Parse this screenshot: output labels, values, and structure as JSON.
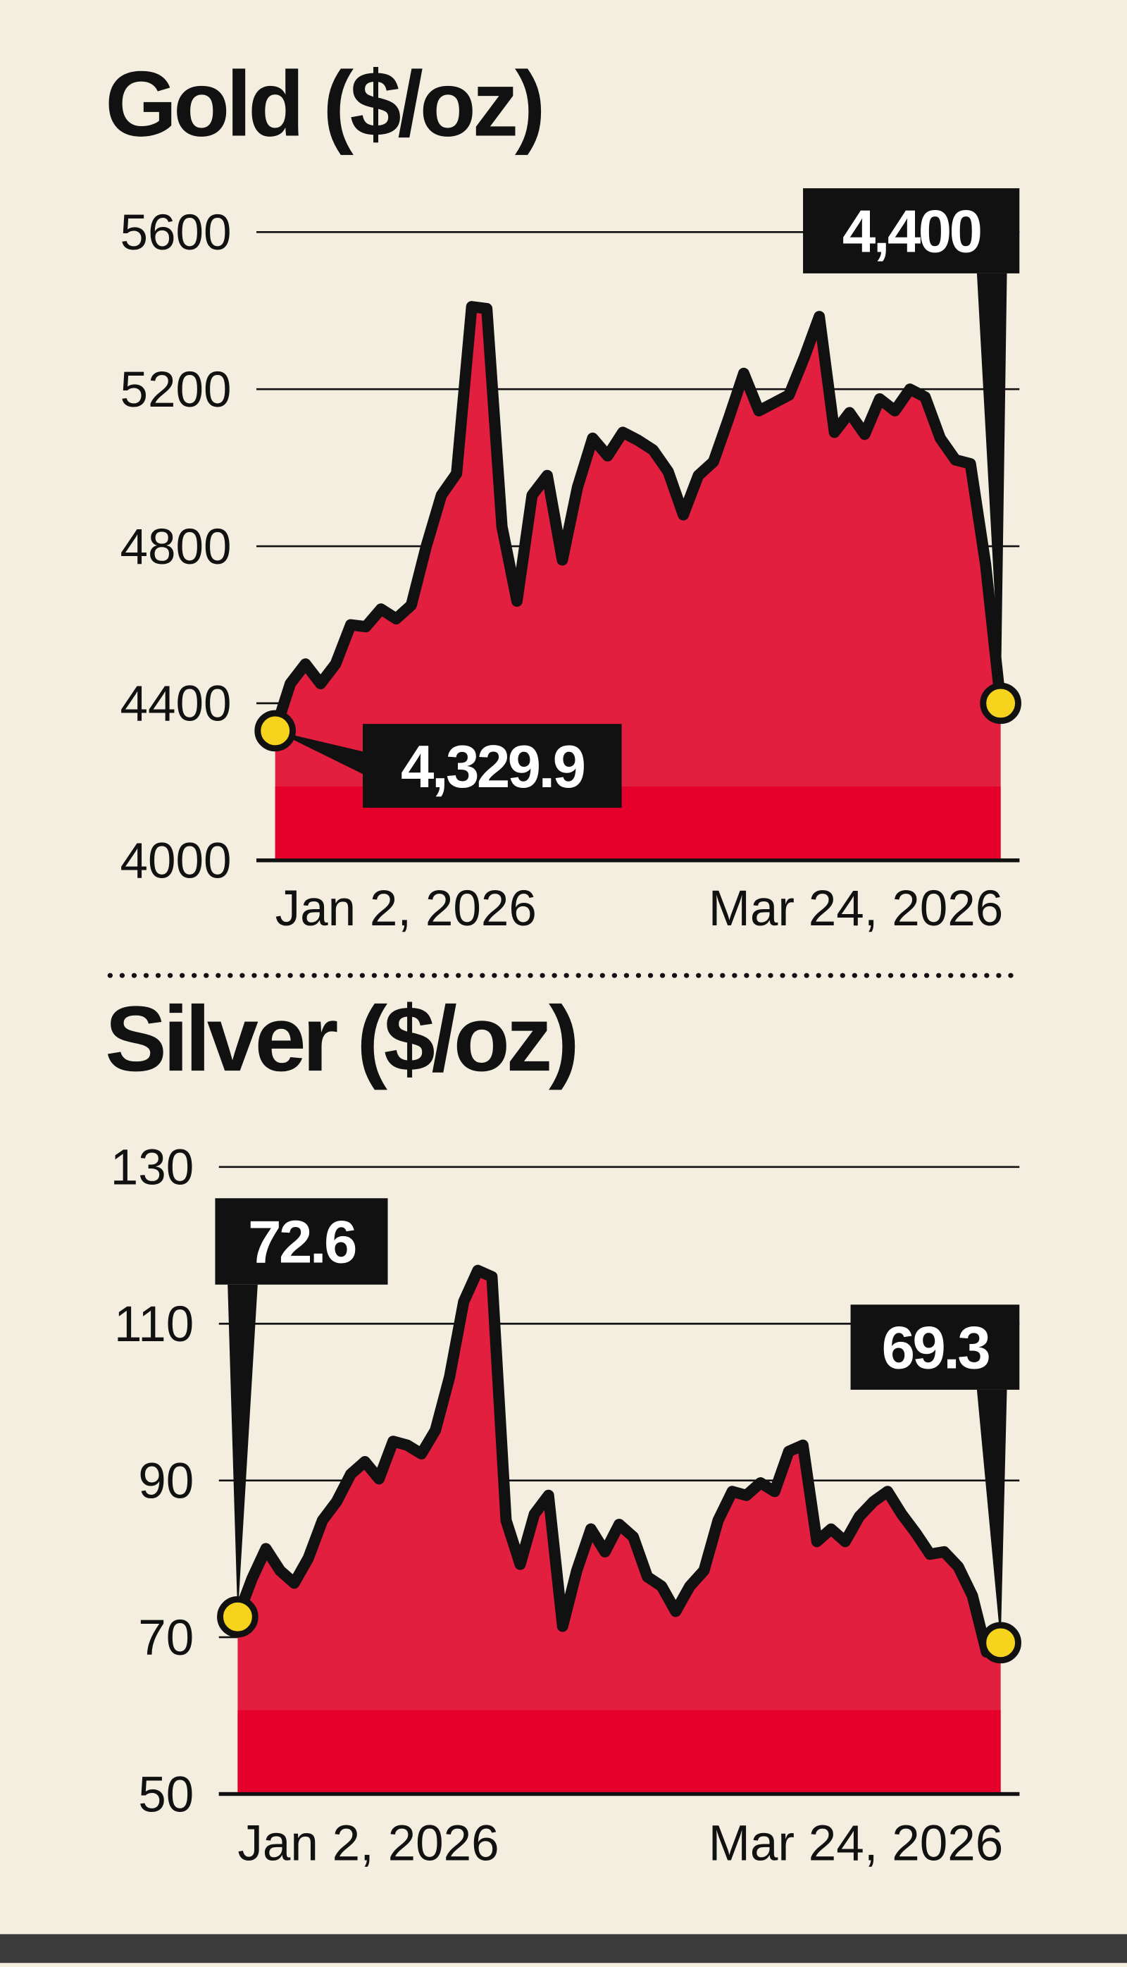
{
  "chart_data": [
    {
      "type": "area",
      "title": "Gold ($/oz)",
      "color": "#e21f3f",
      "line_color": "#111111",
      "categories": [
        "Jan 2, 2026",
        null,
        null,
        null,
        null,
        null,
        null,
        null,
        null,
        null,
        null,
        null,
        null,
        null,
        null,
        null,
        null,
        null,
        null,
        null,
        null,
        null,
        null,
        null,
        null,
        null,
        null,
        null,
        null,
        null,
        null,
        null,
        null,
        null,
        null,
        null,
        null,
        null,
        null,
        null,
        null,
        null,
        null,
        null,
        null,
        null,
        null,
        null,
        "Mar 24, 2026"
      ],
      "values": [
        4329.9,
        4450,
        4500,
        4450,
        4500,
        4600,
        4595,
        4640,
        4615,
        4650,
        4800,
        4930,
        4985,
        5410,
        5405,
        4850,
        4660,
        4930,
        4980,
        4765,
        4950,
        5075,
        5030,
        5090,
        5070,
        5045,
        4990,
        4880,
        4980,
        5015,
        5125,
        5240,
        5145,
        5165,
        5185,
        5280,
        5385,
        5090,
        5140,
        5085,
        5175,
        5145,
        5200,
        5180,
        5075,
        5020,
        5010,
        4755,
        4400
      ],
      "value_labels": [
        "4,329.9",
        null,
        null,
        null,
        null,
        null,
        null,
        null,
        null,
        null,
        null,
        null,
        null,
        null,
        null,
        null,
        null,
        null,
        null,
        null,
        null,
        null,
        null,
        null,
        null,
        null,
        null,
        null,
        null,
        null,
        null,
        null,
        null,
        null,
        null,
        null,
        null,
        null,
        null,
        null,
        null,
        null,
        null,
        null,
        null,
        null,
        null,
        null,
        "4,400"
      ],
      "ylim": [
        4000,
        5600
      ],
      "yticks": [
        4000,
        4400,
        4800,
        5200,
        5600
      ],
      "grid": true
    },
    {
      "type": "area",
      "title": "Silver ($/oz)",
      "color": "#e21f3f",
      "line_color": "#111111",
      "categories": [
        "Jan 2, 2026",
        null,
        null,
        null,
        null,
        null,
        null,
        null,
        null,
        null,
        null,
        null,
        null,
        null,
        null,
        null,
        null,
        null,
        null,
        null,
        null,
        null,
        null,
        null,
        null,
        null,
        null,
        null,
        null,
        null,
        null,
        null,
        null,
        null,
        null,
        null,
        null,
        null,
        null,
        null,
        null,
        null,
        null,
        null,
        null,
        null,
        null,
        null,
        null,
        null,
        null,
        null,
        null,
        null,
        "Mar 24, 2026"
      ],
      "values": [
        72.6,
        77.4,
        81.3,
        78.5,
        76.9,
        80.1,
        84.9,
        87.3,
        90.8,
        92.4,
        90.2,
        95.0,
        94.5,
        93.4,
        96.4,
        103.2,
        112.8,
        116.8,
        116.0,
        84.9,
        79.3,
        85.7,
        88.1,
        71.4,
        78.5,
        83.8,
        80.9,
        84.4,
        82.8,
        77.7,
        76.5,
        73.3,
        76.5,
        78.5,
        84.9,
        88.6,
        88.1,
        89.7,
        88.6,
        93.7,
        94.5,
        82.2,
        83.8,
        82.2,
        85.4,
        87.3,
        88.6,
        85.7,
        83.3,
        80.6,
        80.9,
        79.0,
        75.3,
        68.1,
        69.3
      ],
      "value_labels": [
        "72.6",
        null,
        null,
        null,
        null,
        null,
        null,
        null,
        null,
        null,
        null,
        null,
        null,
        null,
        null,
        null,
        null,
        null,
        null,
        null,
        null,
        null,
        null,
        null,
        null,
        null,
        null,
        null,
        null,
        null,
        null,
        null,
        null,
        null,
        null,
        null,
        null,
        null,
        null,
        null,
        null,
        null,
        null,
        null,
        null,
        null,
        null,
        null,
        null,
        null,
        null,
        null,
        null,
        null,
        "69.3"
      ],
      "ylim": [
        50,
        130
      ],
      "yticks": [
        50,
        70,
        90,
        110,
        130
      ],
      "grid": true
    }
  ]
}
